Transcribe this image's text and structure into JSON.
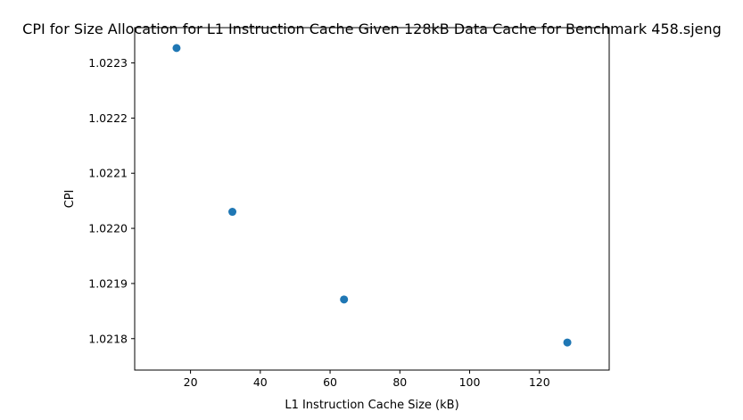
{
  "chart_data": {
    "type": "scatter",
    "title": "CPI for Size Allocation for L1 Instruction Cache Given 128kB Data Cache for Benchmark 458.sjeng",
    "xlabel": "L1 Instruction Cache Size (kB)",
    "ylabel": "CPI",
    "xlim": [
      4,
      140
    ],
    "ylim": [
      1.021743,
      1.022364
    ],
    "xticks": [
      20,
      40,
      60,
      80,
      100,
      120
    ],
    "xtick_labels": [
      "20",
      "40",
      "60",
      "80",
      "100",
      "120"
    ],
    "yticks": [
      1.0218,
      1.0219,
      1.022,
      1.0221,
      1.0222,
      1.0223
    ],
    "ytick_labels": [
      "1.0218",
      "1.0219",
      "1.0220",
      "1.0221",
      "1.0222",
      "1.0223"
    ],
    "grid": false,
    "marker_color": "#1f77b4",
    "series": [
      {
        "name": "CPI",
        "x": [
          16,
          32,
          64,
          128
        ],
        "y": [
          1.022327,
          1.02203,
          1.021871,
          1.021793
        ]
      }
    ]
  }
}
